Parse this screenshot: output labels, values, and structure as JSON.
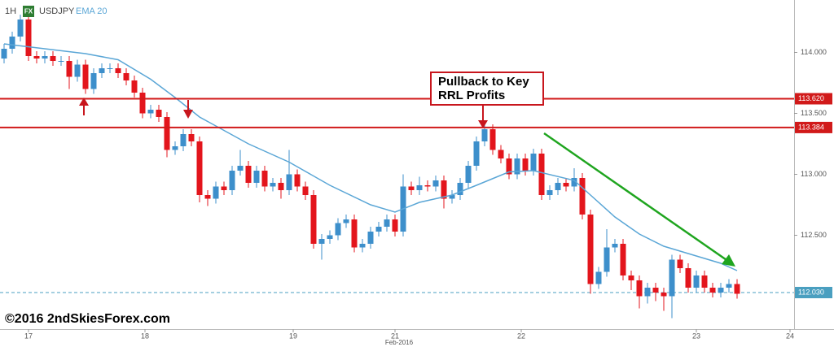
{
  "chart_data": {
    "type": "candlestick",
    "header": {
      "timeframe": "1H",
      "badge": "FX",
      "symbol": "USDJPY",
      "indicator": "EMA 20"
    },
    "copyright": "©2016 2ndSkiesForex.com",
    "annotation": [
      "Pullback to Key",
      "RRL Profits"
    ],
    "x_axis_caption": {
      "value": 48.5,
      "label": "Feb-2016"
    },
    "up_color": "#3d8fcb",
    "down_color": "#e3151c",
    "candles": {
      "open": [
        113.95,
        114.03,
        114.13,
        114.27,
        113.97,
        113.95,
        113.97,
        113.93,
        113.93,
        113.8,
        113.9,
        113.7,
        113.83,
        113.87,
        113.87,
        113.83,
        113.77,
        113.67,
        113.5,
        113.53,
        113.47,
        113.2,
        113.23,
        113.33,
        113.27,
        112.83,
        112.8,
        112.9,
        112.87,
        113.03,
        113.07,
        112.93,
        113.03,
        112.9,
        112.93,
        112.87,
        113.0,
        112.9,
        112.83,
        112.43,
        112.47,
        112.5,
        112.6,
        112.63,
        112.4,
        112.43,
        112.53,
        112.57,
        112.63,
        112.53,
        112.9,
        112.87,
        112.91,
        112.9,
        112.95,
        112.8,
        112.83,
        112.93,
        113.07,
        113.27,
        113.37,
        113.2,
        113.13,
        113.0,
        113.13,
        113.03,
        113.17,
        112.83,
        112.87,
        112.93,
        112.9,
        112.97,
        112.67,
        112.1,
        112.2,
        112.4,
        112.43,
        112.17,
        112.13,
        112.0,
        112.07,
        112.03,
        112.0,
        112.3,
        112.23,
        112.07,
        112.17,
        112.07,
        112.03,
        112.07,
        112.1
      ],
      "high": [
        114.07,
        114.17,
        114.31,
        114.31,
        114.01,
        114.01,
        114.01,
        113.97,
        113.97,
        113.94,
        113.94,
        113.87,
        113.91,
        113.91,
        113.91,
        113.87,
        113.81,
        113.71,
        113.57,
        113.57,
        113.51,
        113.27,
        113.37,
        113.37,
        113.31,
        112.87,
        112.94,
        112.94,
        113.07,
        113.2,
        113.11,
        113.07,
        113.07,
        112.97,
        112.97,
        113.2,
        113.04,
        112.94,
        112.87,
        112.51,
        112.54,
        112.64,
        112.67,
        112.67,
        112.47,
        112.57,
        112.61,
        112.67,
        112.67,
        113.0,
        112.94,
        112.98,
        112.95,
        112.99,
        112.99,
        112.87,
        112.97,
        113.11,
        113.31,
        113.41,
        113.41,
        113.24,
        113.17,
        113.17,
        113.17,
        113.21,
        113.21,
        112.91,
        112.97,
        112.97,
        113.05,
        113.01,
        112.71,
        112.24,
        112.55,
        112.47,
        112.47,
        112.21,
        112.17,
        112.11,
        112.11,
        112.07,
        112.34,
        112.34,
        112.27,
        112.21,
        112.21,
        112.11,
        112.11,
        112.14,
        112.14
      ],
      "low": [
        113.91,
        113.99,
        114.09,
        113.93,
        113.91,
        113.91,
        113.89,
        113.89,
        113.7,
        113.76,
        113.66,
        113.66,
        113.79,
        113.83,
        113.79,
        113.73,
        113.63,
        113.46,
        113.46,
        113.43,
        113.14,
        113.16,
        113.19,
        113.23,
        112.77,
        112.74,
        112.76,
        112.83,
        112.83,
        112.99,
        112.89,
        112.89,
        112.86,
        112.86,
        112.8,
        112.83,
        112.86,
        112.79,
        112.39,
        112.3,
        112.43,
        112.46,
        112.56,
        112.36,
        112.36,
        112.39,
        112.49,
        112.53,
        112.49,
        112.49,
        112.83,
        112.83,
        112.86,
        112.86,
        112.72,
        112.76,
        112.79,
        112.89,
        113.03,
        113.23,
        113.16,
        113.09,
        112.96,
        112.96,
        112.99,
        112.99,
        112.79,
        112.79,
        112.83,
        112.86,
        112.86,
        112.63,
        112.02,
        112.06,
        112.16,
        112.36,
        112.13,
        112.05,
        111.9,
        111.94,
        111.96,
        111.88,
        111.82,
        112.19,
        112.03,
        112.03,
        112.03,
        111.99,
        111.99,
        112.03,
        111.98
      ],
      "close": [
        114.03,
        114.13,
        114.27,
        113.97,
        113.95,
        113.97,
        113.93,
        113.93,
        113.8,
        113.9,
        113.7,
        113.83,
        113.87,
        113.87,
        113.83,
        113.77,
        113.67,
        113.5,
        113.53,
        113.47,
        113.2,
        113.23,
        113.33,
        113.27,
        112.83,
        112.8,
        112.9,
        112.87,
        113.03,
        113.07,
        112.93,
        113.03,
        112.9,
        112.93,
        112.87,
        113.0,
        112.9,
        112.83,
        112.43,
        112.47,
        112.5,
        112.6,
        112.63,
        112.4,
        112.43,
        112.53,
        112.57,
        112.63,
        112.53,
        112.9,
        112.87,
        112.91,
        112.9,
        112.95,
        112.8,
        112.83,
        112.93,
        113.07,
        113.27,
        113.37,
        113.2,
        113.13,
        113.0,
        113.13,
        113.03,
        113.17,
        112.83,
        112.87,
        112.93,
        112.9,
        112.97,
        112.67,
        112.1,
        112.2,
        112.4,
        112.43,
        112.17,
        112.13,
        112.0,
        112.07,
        112.03,
        112.0,
        112.3,
        112.23,
        112.07,
        112.17,
        112.07,
        112.03,
        112.07,
        112.1,
        112.02
      ]
    },
    "series": [
      {
        "name": "EMA 20",
        "color": "#5aa6d6",
        "x": [
          0,
          5,
          10,
          14,
          18,
          21,
          24,
          30,
          35,
          40,
          45,
          48,
          51,
          55,
          58,
          62,
          65,
          70,
          72,
          75,
          78,
          81,
          85,
          88,
          90
        ],
        "values": [
          114.07,
          114.03,
          113.99,
          113.94,
          113.78,
          113.63,
          113.47,
          113.25,
          113.1,
          112.91,
          112.75,
          112.69,
          112.77,
          112.83,
          112.91,
          113.02,
          113.03,
          112.95,
          112.83,
          112.65,
          112.51,
          112.41,
          112.33,
          112.27,
          112.21
        ]
      }
    ],
    "levels": [
      {
        "value": 113.62,
        "label": "113.620",
        "color": "#d11a1a"
      },
      {
        "value": 113.384,
        "label": "113.384",
        "color": "#d11a1a"
      }
    ],
    "price_line": {
      "value": 112.03,
      "label": "112.030",
      "color": "#4a9fc0"
    },
    "xlim": [
      -0.5,
      97
    ],
    "ylim": [
      111.73,
      114.43
    ],
    "xticks": [
      {
        "value": 3,
        "label": "17"
      },
      {
        "value": 17.3,
        "label": "18"
      },
      {
        "value": 35.5,
        "label": "19"
      },
      {
        "value": 48,
        "label": "21"
      },
      {
        "value": 63.5,
        "label": "22"
      },
      {
        "value": 85,
        "label": "23"
      },
      {
        "value": 96.5,
        "label": "24"
      }
    ],
    "yticks": [
      {
        "value": 112.5,
        "label": "112.500"
      },
      {
        "value": 113,
        "label": "113.000"
      },
      {
        "value": 113.5,
        "label": "113.500"
      },
      {
        "value": 114,
        "label": "114.000"
      }
    ]
  }
}
